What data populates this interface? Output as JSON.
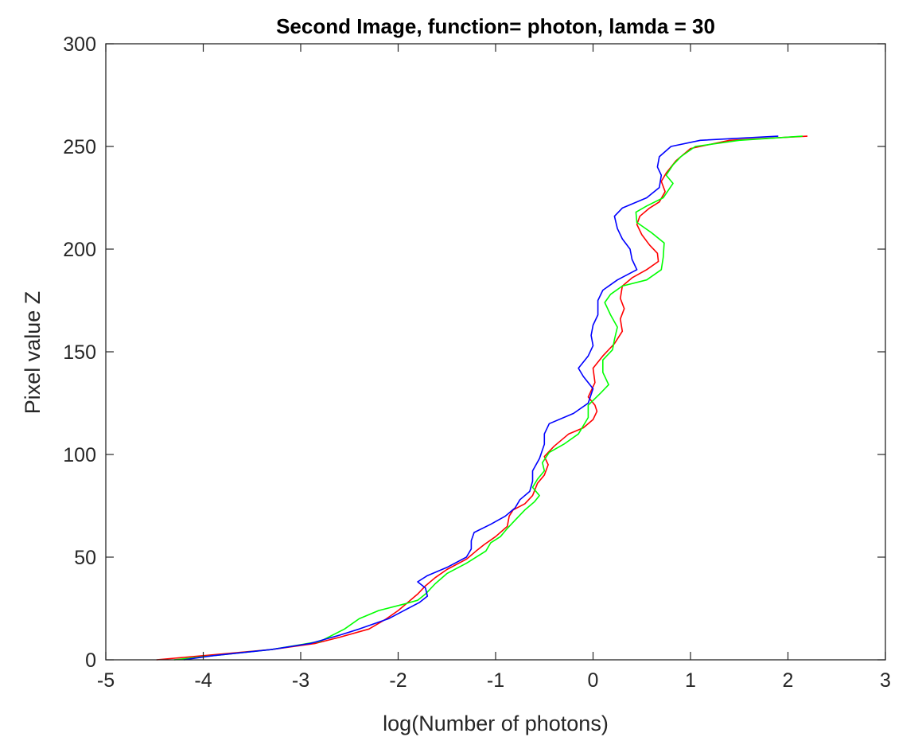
{
  "chart_data": {
    "type": "line",
    "title": "Second Image, function= photon, lamda = 30",
    "xlabel": "log(Number of photons)",
    "ylabel": "Pixel value Z",
    "xlim": [
      -5,
      3
    ],
    "ylim": [
      0,
      300
    ],
    "xticks": [
      -5,
      -4,
      -3,
      -2,
      -1,
      0,
      1,
      2,
      3
    ],
    "yticks": [
      0,
      50,
      100,
      150,
      200,
      250,
      300
    ],
    "xtick_labels": [
      "-5",
      "-4",
      "-3",
      "-2",
      "-1",
      "0",
      "1",
      "2",
      "3"
    ],
    "ytick_labels": [
      "0",
      "50",
      "100",
      "150",
      "200",
      "250",
      "300"
    ],
    "grid": false,
    "box": true,
    "series": [
      {
        "color": "#ff0000",
        "points": [
          [
            -4.48,
            0
          ],
          [
            -4.0,
            2
          ],
          [
            -3.3,
            5
          ],
          [
            -2.85,
            8
          ],
          [
            -2.6,
            11
          ],
          [
            -2.3,
            15
          ],
          [
            -2.12,
            20
          ],
          [
            -2.0,
            24
          ],
          [
            -1.9,
            28
          ],
          [
            -1.8,
            32
          ],
          [
            -1.72,
            36
          ],
          [
            -1.62,
            40
          ],
          [
            -1.5,
            44
          ],
          [
            -1.3,
            49
          ],
          [
            -1.2,
            53
          ],
          [
            -1.12,
            56
          ],
          [
            -1.0,
            60
          ],
          [
            -0.88,
            65
          ],
          [
            -0.86,
            70
          ],
          [
            -0.82,
            73
          ],
          [
            -0.7,
            76
          ],
          [
            -0.62,
            80
          ],
          [
            -0.57,
            86
          ],
          [
            -0.5,
            90
          ],
          [
            -0.46,
            95
          ],
          [
            -0.5,
            99
          ],
          [
            -0.4,
            104
          ],
          [
            -0.25,
            110
          ],
          [
            -0.1,
            113
          ],
          [
            0.0,
            117
          ],
          [
            0.04,
            121
          ],
          [
            0.02,
            124
          ],
          [
            -0.05,
            128
          ],
          [
            0.02,
            135
          ],
          [
            0.0,
            142
          ],
          [
            0.1,
            148
          ],
          [
            0.22,
            154
          ],
          [
            0.3,
            160
          ],
          [
            0.28,
            166
          ],
          [
            0.32,
            171
          ],
          [
            0.28,
            176
          ],
          [
            0.3,
            182
          ],
          [
            0.4,
            186
          ],
          [
            0.55,
            190
          ],
          [
            0.67,
            194
          ],
          [
            0.66,
            198
          ],
          [
            0.58,
            202
          ],
          [
            0.5,
            207
          ],
          [
            0.45,
            212
          ],
          [
            0.48,
            216
          ],
          [
            0.58,
            220
          ],
          [
            0.68,
            223
          ],
          [
            0.74,
            228
          ],
          [
            0.7,
            233
          ],
          [
            0.75,
            237
          ],
          [
            0.85,
            243
          ],
          [
            1.0,
            249
          ],
          [
            1.4,
            253
          ],
          [
            2.2,
            255
          ]
        ]
      },
      {
        "color": "#00ff00",
        "points": [
          [
            -4.3,
            0
          ],
          [
            -3.9,
            2
          ],
          [
            -3.3,
            5
          ],
          [
            -2.8,
            9
          ],
          [
            -2.55,
            15
          ],
          [
            -2.4,
            20
          ],
          [
            -2.2,
            24
          ],
          [
            -1.95,
            27
          ],
          [
            -1.8,
            29
          ],
          [
            -1.72,
            32
          ],
          [
            -1.62,
            37
          ],
          [
            -1.5,
            42
          ],
          [
            -1.3,
            47
          ],
          [
            -1.1,
            53
          ],
          [
            -1.05,
            57
          ],
          [
            -0.95,
            60
          ],
          [
            -0.88,
            64
          ],
          [
            -0.8,
            68
          ],
          [
            -0.7,
            73
          ],
          [
            -0.6,
            77
          ],
          [
            -0.55,
            80
          ],
          [
            -0.62,
            84
          ],
          [
            -0.57,
            88
          ],
          [
            -0.5,
            92
          ],
          [
            -0.52,
            96
          ],
          [
            -0.45,
            101
          ],
          [
            -0.3,
            105
          ],
          [
            -0.15,
            110
          ],
          [
            -0.05,
            118
          ],
          [
            -0.05,
            124
          ],
          [
            0.08,
            130
          ],
          [
            0.16,
            134
          ],
          [
            0.1,
            140
          ],
          [
            0.1,
            146
          ],
          [
            0.2,
            151
          ],
          [
            0.22,
            156
          ],
          [
            0.25,
            162
          ],
          [
            0.18,
            168
          ],
          [
            0.12,
            174
          ],
          [
            0.18,
            178
          ],
          [
            0.3,
            182
          ],
          [
            0.55,
            185
          ],
          [
            0.7,
            190
          ],
          [
            0.72,
            196
          ],
          [
            0.73,
            203
          ],
          [
            0.6,
            208
          ],
          [
            0.45,
            213
          ],
          [
            0.44,
            218
          ],
          [
            0.55,
            221
          ],
          [
            0.72,
            225
          ],
          [
            0.82,
            232
          ],
          [
            0.75,
            236
          ],
          [
            0.82,
            241
          ],
          [
            0.9,
            245
          ],
          [
            1.05,
            250
          ],
          [
            1.5,
            253
          ],
          [
            2.15,
            255
          ]
        ]
      },
      {
        "color": "#0000ff",
        "points": [
          [
            -4.2,
            0
          ],
          [
            -3.9,
            2
          ],
          [
            -3.3,
            5
          ],
          [
            -2.9,
            8
          ],
          [
            -2.6,
            12
          ],
          [
            -2.4,
            15
          ],
          [
            -2.1,
            20
          ],
          [
            -1.9,
            25
          ],
          [
            -1.78,
            28
          ],
          [
            -1.7,
            31
          ],
          [
            -1.72,
            35
          ],
          [
            -1.8,
            38
          ],
          [
            -1.7,
            41
          ],
          [
            -1.5,
            45
          ],
          [
            -1.3,
            50
          ],
          [
            -1.25,
            54
          ],
          [
            -1.25,
            58
          ],
          [
            -1.22,
            62
          ],
          [
            -1.05,
            66
          ],
          [
            -0.9,
            70
          ],
          [
            -0.8,
            74
          ],
          [
            -0.75,
            78
          ],
          [
            -0.65,
            82
          ],
          [
            -0.62,
            87
          ],
          [
            -0.62,
            92
          ],
          [
            -0.55,
            98
          ],
          [
            -0.5,
            105
          ],
          [
            -0.5,
            110
          ],
          [
            -0.45,
            115
          ],
          [
            -0.2,
            120
          ],
          [
            -0.05,
            125
          ],
          [
            0.0,
            132
          ],
          [
            -0.1,
            138
          ],
          [
            -0.15,
            142
          ],
          [
            -0.05,
            148
          ],
          [
            0.0,
            153
          ],
          [
            -0.02,
            158
          ],
          [
            0.0,
            163
          ],
          [
            0.05,
            168
          ],
          [
            0.05,
            175
          ],
          [
            0.1,
            180
          ],
          [
            0.25,
            185
          ],
          [
            0.45,
            190
          ],
          [
            0.4,
            195
          ],
          [
            0.38,
            200
          ],
          [
            0.3,
            205
          ],
          [
            0.25,
            210
          ],
          [
            0.22,
            216
          ],
          [
            0.3,
            220
          ],
          [
            0.55,
            225
          ],
          [
            0.68,
            230
          ],
          [
            0.7,
            236
          ],
          [
            0.66,
            240
          ],
          [
            0.68,
            245
          ],
          [
            0.8,
            250
          ],
          [
            1.1,
            253
          ],
          [
            1.9,
            255
          ]
        ]
      }
    ]
  }
}
